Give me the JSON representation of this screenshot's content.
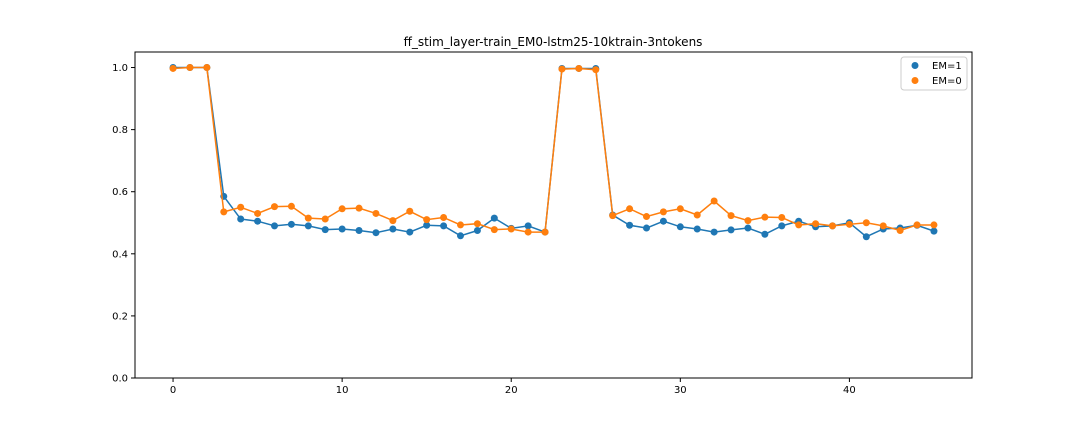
{
  "chart_data": {
    "type": "line",
    "title": "ff_stim_layer-train_EM0-lstm25-10ktrain-3ntokens",
    "xlabel": "",
    "ylabel": "",
    "xlim": [
      -2.25,
      47.25
    ],
    "ylim": [
      0.0,
      1.05
    ],
    "xticks": [
      0,
      10,
      20,
      30,
      40
    ],
    "yticks": [
      0.0,
      0.2,
      0.4,
      0.6,
      0.8,
      1.0
    ],
    "grid": false,
    "legend_position": "top-right",
    "x": [
      0,
      1,
      2,
      3,
      4,
      5,
      6,
      7,
      8,
      9,
      10,
      11,
      12,
      13,
      14,
      15,
      16,
      17,
      18,
      19,
      20,
      21,
      22,
      23,
      24,
      25,
      26,
      27,
      28,
      29,
      30,
      31,
      32,
      33,
      34,
      35,
      36,
      37,
      38,
      39,
      40,
      41,
      42,
      43,
      44,
      45
    ],
    "series": [
      {
        "name": "EM=1",
        "color": "#1f77b4",
        "values": [
          1.0,
          1.0,
          1.0,
          0.585,
          0.512,
          0.505,
          0.49,
          0.495,
          0.49,
          0.478,
          0.48,
          0.475,
          0.468,
          0.48,
          0.47,
          0.492,
          0.49,
          0.458,
          0.475,
          0.515,
          0.482,
          0.49,
          0.47,
          0.997,
          0.997,
          0.997,
          0.525,
          0.492,
          0.483,
          0.505,
          0.487,
          0.48,
          0.47,
          0.477,
          0.483,
          0.463,
          0.49,
          0.505,
          0.487,
          0.49,
          0.5,
          0.455,
          0.48,
          0.483,
          0.492,
          0.473
        ]
      },
      {
        "name": "EM=0",
        "color": "#ff7f0e",
        "values": [
          0.997,
          1.0,
          1.0,
          0.535,
          0.55,
          0.53,
          0.552,
          0.553,
          0.515,
          0.512,
          0.545,
          0.547,
          0.53,
          0.507,
          0.537,
          0.51,
          0.517,
          0.493,
          0.497,
          0.478,
          0.48,
          0.47,
          0.47,
          0.995,
          0.997,
          0.993,
          0.523,
          0.545,
          0.52,
          0.535,
          0.545,
          0.525,
          0.57,
          0.523,
          0.507,
          0.518,
          0.517,
          0.493,
          0.497,
          0.49,
          0.495,
          0.5,
          0.49,
          0.475,
          0.493,
          0.493
        ]
      }
    ]
  }
}
